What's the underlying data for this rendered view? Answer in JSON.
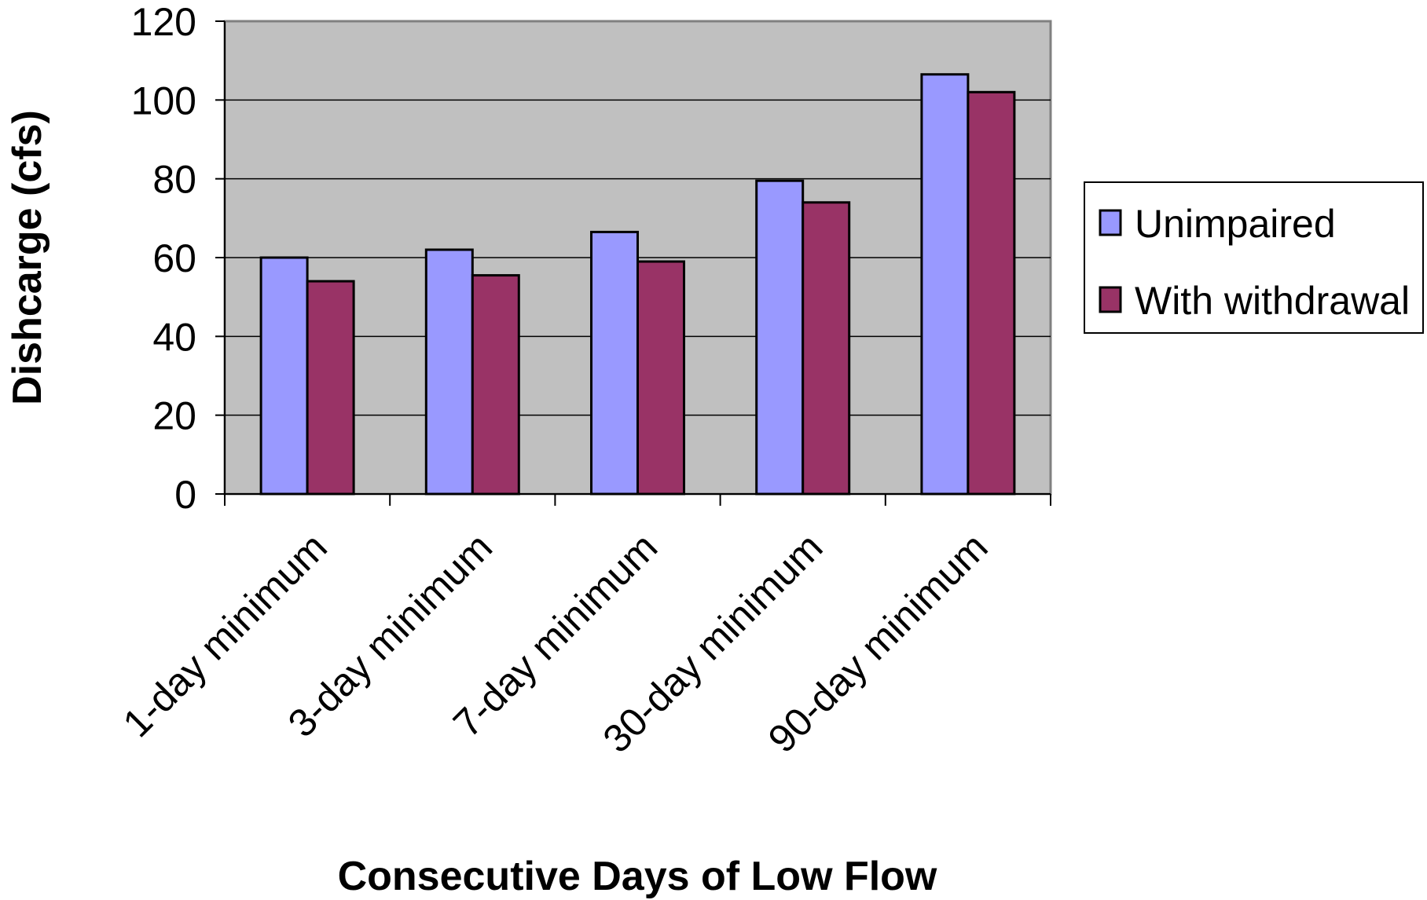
{
  "chart_data": {
    "type": "bar",
    "title": "",
    "xlabel": "Consecutive Days of Low Flow",
    "ylabel": "Dishcarge (cfs)",
    "categories": [
      "1-day minimum",
      "3-day minimum",
      "7-day minimum",
      "30-day minimum",
      "90-day minimum"
    ],
    "series": [
      {
        "name": "Unimpaired",
        "values": [
          60,
          62,
          66.5,
          79.5,
          106.5
        ],
        "color": "#9999FF"
      },
      {
        "name": "With withdrawal",
        "values": [
          54,
          55.5,
          59,
          74,
          102
        ],
        "color": "#993366"
      }
    ],
    "ylim": [
      0,
      120
    ],
    "yticks": [
      0,
      20,
      40,
      60,
      80,
      100,
      120
    ],
    "grid": true,
    "plot_background": "#C0C0C0",
    "legend_position": "right"
  }
}
